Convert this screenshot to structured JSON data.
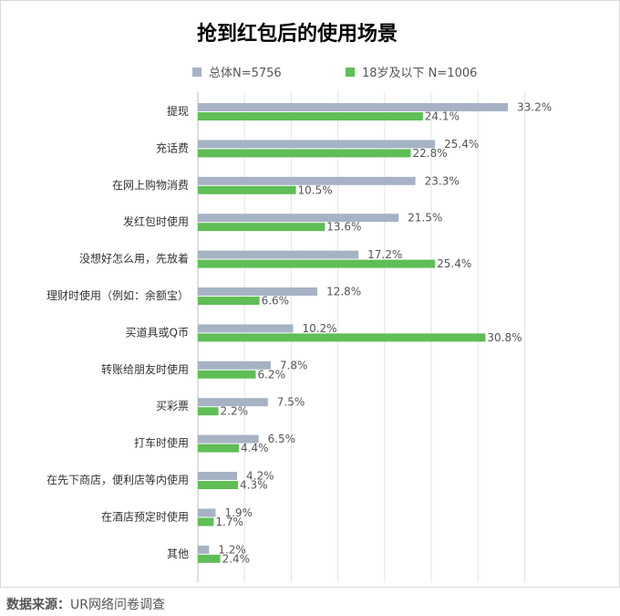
{
  "chart_data": {
    "type": "bar",
    "orientation": "horizontal",
    "title": "抢到红包后的使用场景",
    "legend_position": "top",
    "grid": "vertical",
    "xlim": [
      0,
      35
    ],
    "categories": [
      "提现",
      "充话费",
      "在网上购物消费",
      "发红包时使用",
      "没想好怎么用，先放着",
      "理财时使用（例如：余额宝）",
      "买道具或Q币",
      "转账给朋友时使用",
      "买彩票",
      "打车时使用",
      "在先下商店，便利店等内使用",
      "在酒店预定时使用",
      "其他"
    ],
    "series": [
      {
        "name": "总体N=5756",
        "color": "#a6b3c4",
        "values": [
          33.2,
          25.4,
          23.3,
          21.5,
          17.2,
          12.8,
          10.2,
          7.8,
          7.5,
          6.5,
          4.2,
          1.9,
          1.2
        ],
        "labels": [
          "33.2%",
          "25.4%",
          "23.3%",
          "21.5%",
          "17.2%",
          "12.8%",
          "10.2%",
          "7.8%",
          "7.5%",
          "6.5%",
          "4.2%",
          "1.9%",
          "1.2%"
        ]
      },
      {
        "name": "18岁及以下 N=1006",
        "color": "#5fbe55",
        "values": [
          24.1,
          22.8,
          10.5,
          13.6,
          25.4,
          6.6,
          30.8,
          6.2,
          2.2,
          4.4,
          4.3,
          1.7,
          2.4
        ],
        "labels": [
          "24.1%",
          "22.8%",
          "10.5%",
          "13.6%",
          "25.4%",
          "6.6%",
          "30.8%",
          "6.2%",
          "2.2%",
          "4.4%",
          "4.3%",
          "1.7%",
          "2.4%"
        ]
      }
    ]
  },
  "source": {
    "label": "数据来源：",
    "text": "UR网络问卷调查"
  }
}
